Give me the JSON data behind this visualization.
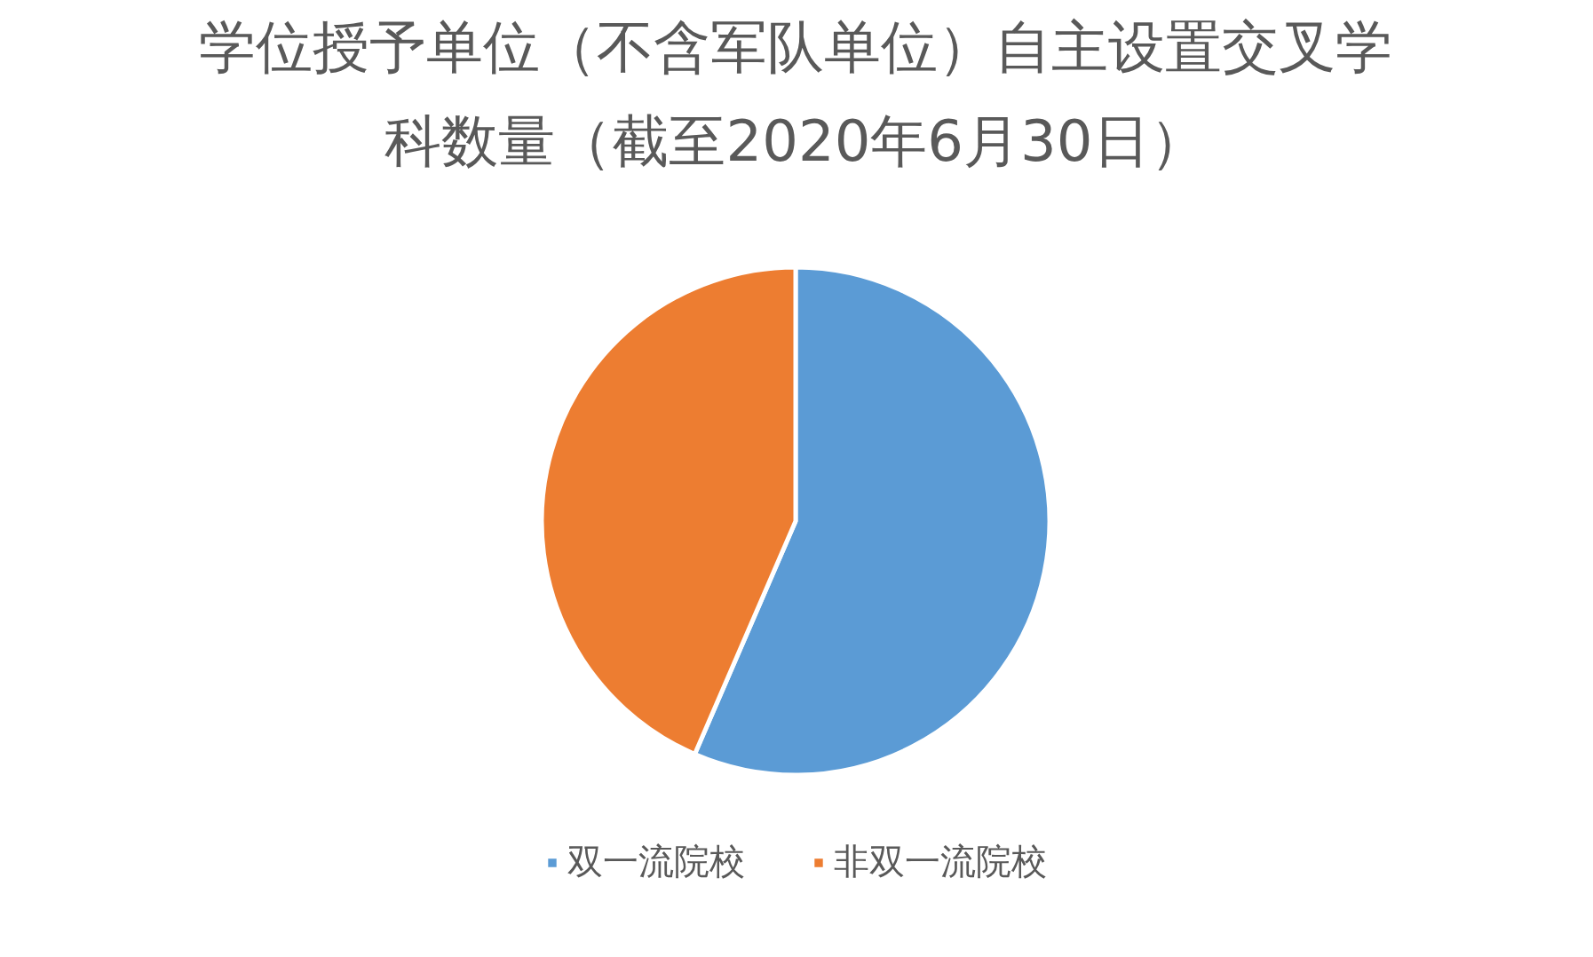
{
  "chart_data": {
    "type": "pie",
    "title": "学位授予单位（不含军队单位）自主设置交叉学科数量（截至2020年6月30日）",
    "categories": [
      "双一流院校",
      "非双一流院校"
    ],
    "values": [
      56.5,
      43.5
    ],
    "colors": [
      "#5b9bd5",
      "#ed7d31"
    ],
    "legend": "bottom"
  }
}
